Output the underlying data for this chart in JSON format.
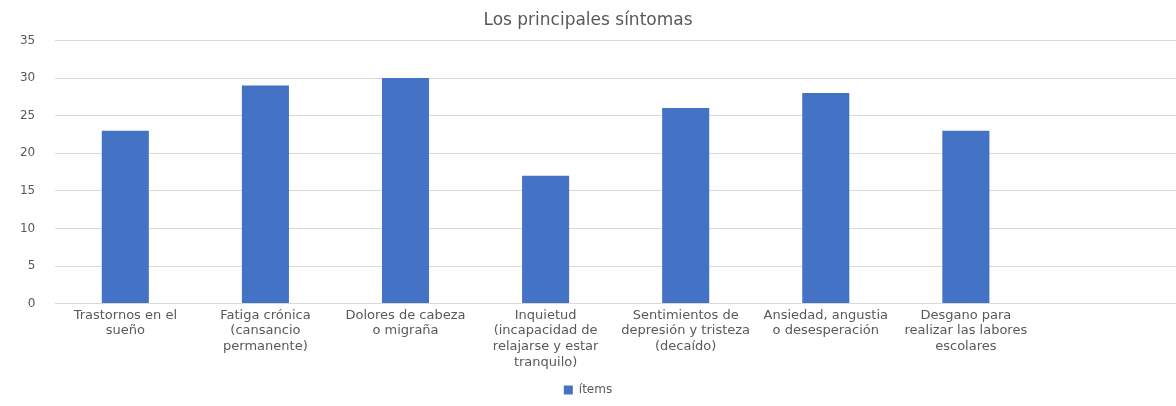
{
  "chart_data": {
    "type": "bar",
    "title": "Los principales síntomas",
    "categories": [
      "Trastornos en el sueño",
      "Fatiga crónica (cansancio permanente)",
      "Dolores de cabeza o migraña",
      "Inquietud (incapacidad de relajarse y estar tranquilo)",
      "Sentimientos de depresión y tristeza (decaído)",
      "Ansiedad, angustia o desesperación",
      "Desgano para realizar las labores escolares",
      null
    ],
    "series": [
      {
        "name": "ítems",
        "color": "#4472c4",
        "values": [
          23,
          29,
          30,
          17,
          26,
          28,
          23,
          null
        ]
      }
    ],
    "ylim": [
      0,
      35
    ],
    "yticks": [
      0,
      5,
      10,
      15,
      20,
      25,
      30,
      35
    ],
    "grid": "y",
    "legend": "bottom"
  }
}
